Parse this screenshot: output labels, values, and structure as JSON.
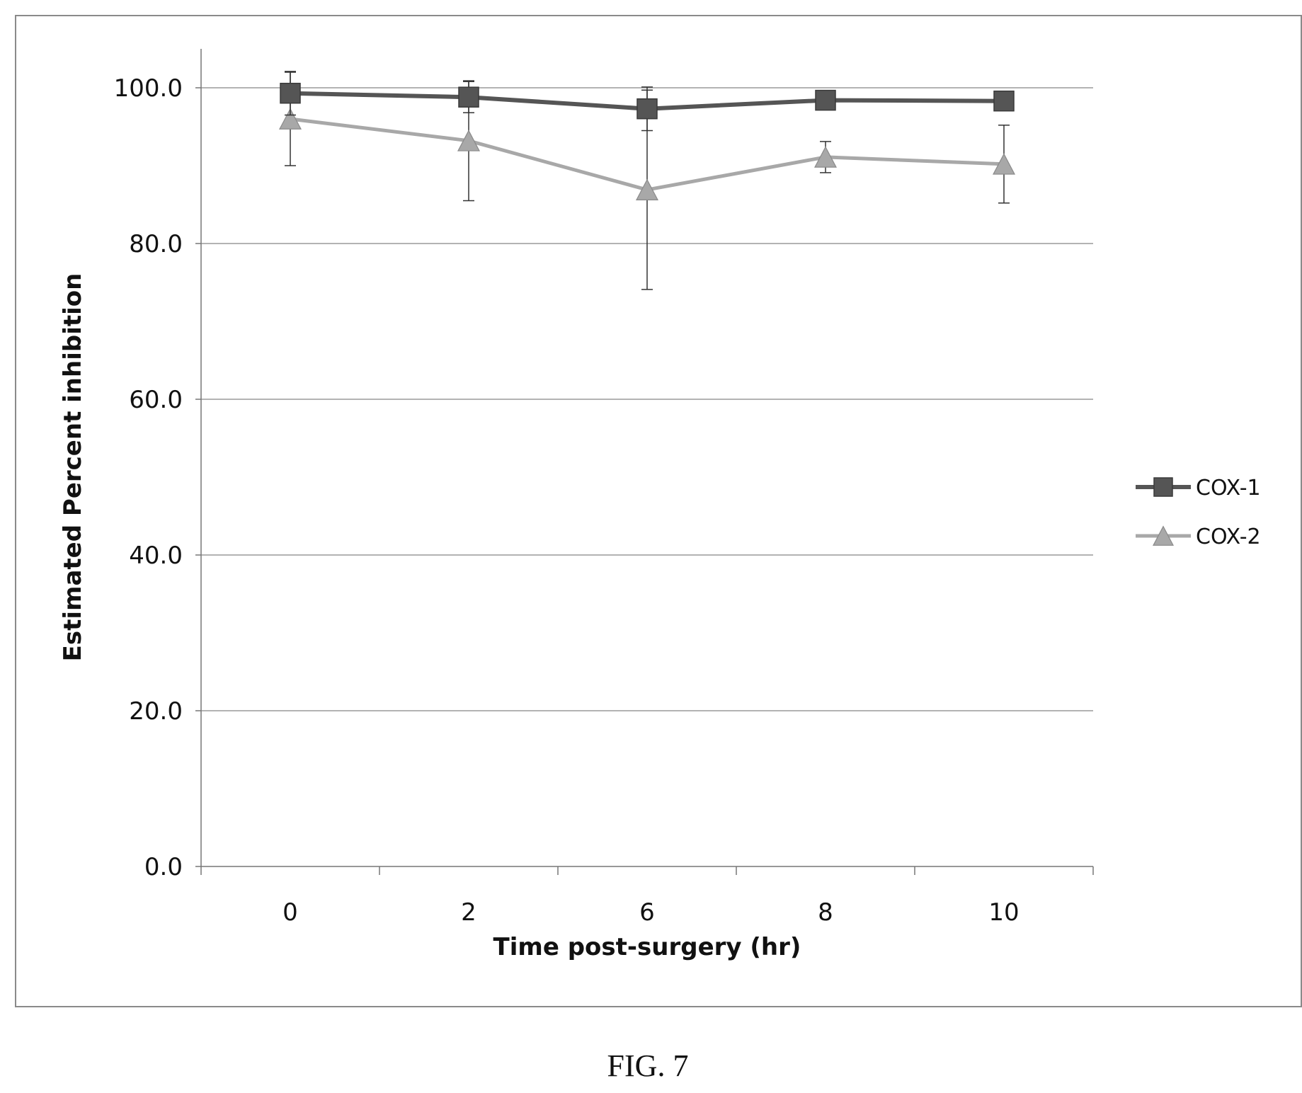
{
  "chart_data": {
    "type": "line",
    "categories": [
      "0",
      "2",
      "6",
      "8",
      "10"
    ],
    "series": [
      {
        "name": "COX-1",
        "values": [
          99.3,
          98.8,
          97.3,
          98.4,
          98.3
        ],
        "error": [
          2.8,
          2.0,
          2.8,
          0.0,
          0.0
        ],
        "marker": "square",
        "color": "#555555"
      },
      {
        "name": "COX-2",
        "values": [
          96.0,
          93.2,
          86.9,
          91.1,
          90.2
        ],
        "error": [
          6.0,
          7.7,
          12.8,
          2.0,
          5.0
        ],
        "marker": "triangle",
        "color": "#a8a8a8"
      }
    ],
    "xlabel": "Time post-surgery (hr)",
    "ylabel": "Estimated Percent inhibition",
    "ylim": [
      0,
      100
    ],
    "yticks": [
      "0.0",
      "20.0",
      "40.0",
      "60.0",
      "80.0",
      "100.0"
    ],
    "grid": true,
    "legend": "right"
  },
  "caption": "FIG. 7"
}
